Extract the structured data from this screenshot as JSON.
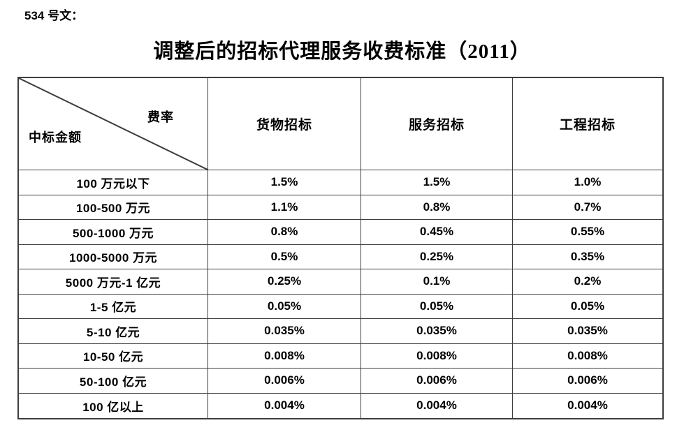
{
  "document": {
    "doc_label": "534 号文：",
    "title": "调整后的招标代理服务收费标准（2011）"
  },
  "table": {
    "corner": {
      "top_right": "费率",
      "bottom_left": "中标金额"
    },
    "columns": [
      "货物招标",
      "服务招标",
      "工程招标"
    ],
    "rows": [
      {
        "label": "100 万元以下",
        "values": [
          "1.5%",
          "1.5%",
          "1.0%"
        ]
      },
      {
        "label": "100-500 万元",
        "values": [
          "1.1%",
          "0.8%",
          "0.7%"
        ]
      },
      {
        "label": "500-1000 万元",
        "values": [
          "0.8%",
          "0.45%",
          "0.55%"
        ]
      },
      {
        "label": "1000-5000 万元",
        "values": [
          "0.5%",
          "0.25%",
          "0.35%"
        ]
      },
      {
        "label": "5000 万元-1 亿元",
        "values": [
          "0.25%",
          "0.1%",
          "0.2%"
        ]
      },
      {
        "label": "1-5 亿元",
        "values": [
          "0.05%",
          "0.05%",
          "0.05%"
        ]
      },
      {
        "label": "5-10 亿元",
        "values": [
          "0.035%",
          "0.035%",
          "0.035%"
        ]
      },
      {
        "label": "10-50 亿元",
        "values": [
          "0.008%",
          "0.008%",
          "0.008%"
        ]
      },
      {
        "label": "50-100 亿元",
        "values": [
          "0.006%",
          "0.006%",
          "0.006%"
        ]
      },
      {
        "label": "100 亿以上",
        "values": [
          "0.004%",
          "0.004%",
          "0.004%"
        ]
      }
    ]
  },
  "colors": {
    "text": "#000000",
    "border": "#3d3d3d",
    "background": "#ffffff"
  }
}
